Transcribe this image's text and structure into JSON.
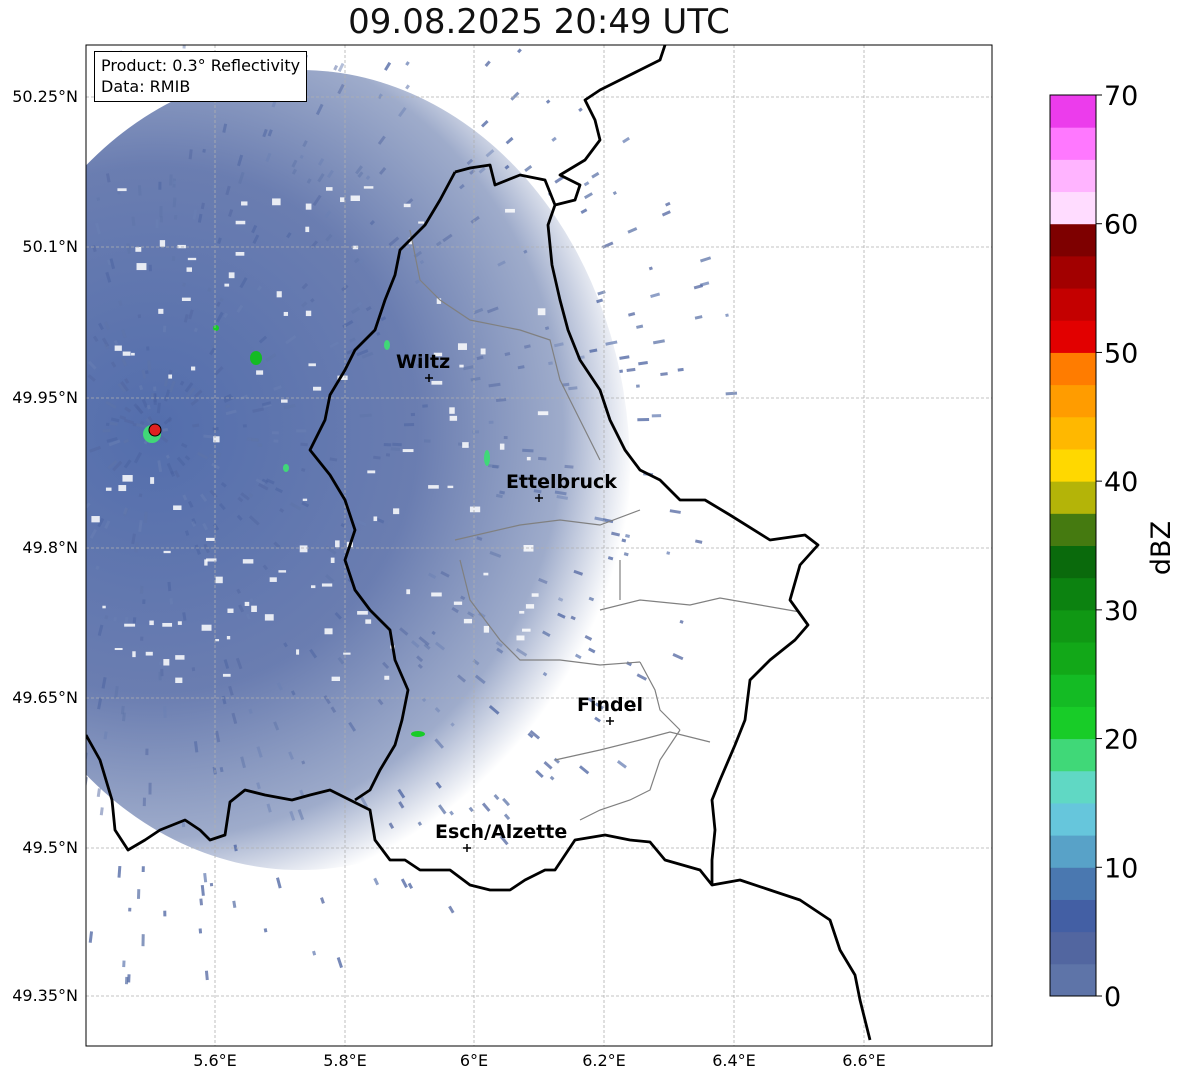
{
  "title": "09.08.2025 20:49 UTC",
  "info": {
    "product": "Product: 0.3° Reflectivity",
    "data_source": "Data: RMIB"
  },
  "lat_ticks": [
    "50.25°N",
    "50.1°N",
    "49.95°N",
    "49.8°N",
    "49.65°N",
    "49.5°N",
    "49.35°N"
  ],
  "lon_ticks": [
    "5.6°E",
    "5.8°E",
    "6°E",
    "6.2°E",
    "6.4°E",
    "6.6°E"
  ],
  "cities": [
    {
      "name": "Wiltz"
    },
    {
      "name": "Ettelbruck"
    },
    {
      "name": "Findel"
    },
    {
      "name": "Esch/Alzette"
    }
  ],
  "colorbar": {
    "label": "dBZ",
    "ticks": [
      "0",
      "10",
      "20",
      "30",
      "40",
      "50",
      "60",
      "70"
    ],
    "colors": [
      "#5e74a8",
      "#5266a0",
      "#435fa4",
      "#4a78b0",
      "#58a2c8",
      "#66c6dc",
      "#60d8c4",
      "#40d878",
      "#18cc28",
      "#14bb24",
      "#12a818",
      "#109814",
      "#0c8210",
      "#0a6a0c",
      "#457a10",
      "#b4b408",
      "#ffd800",
      "#ffb800",
      "#ff9c00",
      "#ff7c00",
      "#e20000",
      "#c40000",
      "#a20000",
      "#7e0000",
      "#ffdcff",
      "#ffb4ff",
      "#ff78ff",
      "#ec3cec"
    ]
  },
  "colors": {
    "background_echo": "#5e74a8",
    "border": "#000000",
    "grid": "#b0b0b0"
  }
}
